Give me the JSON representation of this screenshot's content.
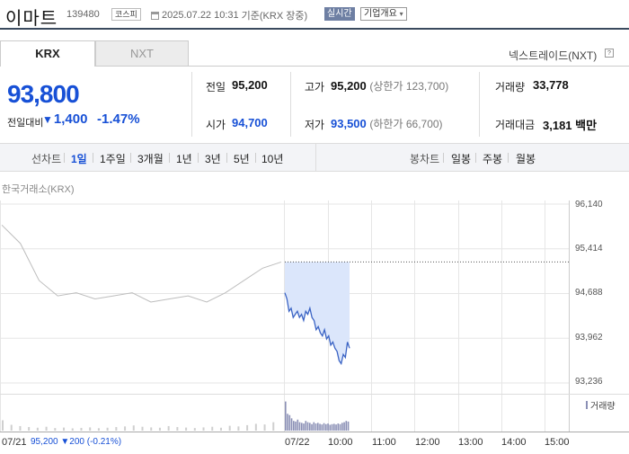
{
  "header": {
    "stock_name": "이마트",
    "stock_code": "139480",
    "market_badge": "코스피",
    "datetime": "2025.07.22 10:31",
    "basis": "기준(KRX 장중)",
    "realtime_button": "실시간",
    "company_info_button": "기업개요",
    "calendar_icon": "calendar-icon",
    "dropdown_icon": "chevron-down-icon"
  },
  "tabs": {
    "krx": "KRX",
    "nxt": "NXT",
    "nextrade_label": "넥스트레이드(NXT)",
    "help_icon": "question-icon"
  },
  "price": {
    "current": "93,800",
    "compare_label": "전일대비",
    "change": "1,400",
    "change_pct": "-1.47%",
    "direction_icon": "down-triangle-icon"
  },
  "stats": {
    "prev_label": "전일",
    "prev": "95,200",
    "open_label": "시가",
    "open": "94,700",
    "high_label": "고가",
    "high": "95,200",
    "upper_limit": "(상한가 123,700)",
    "low_label": "저가",
    "low": "93,500",
    "lower_limit": "(하한가 66,700)",
    "volume_label": "거래량",
    "volume": "33,778",
    "amount_label": "거래대금",
    "amount": "3,181",
    "amount_unit": "백만"
  },
  "period_bar": {
    "line_chart_label": "선차트",
    "line_periods": [
      "1일",
      "1주일",
      "3개월",
      "1년",
      "3년",
      "5년",
      "10년"
    ],
    "active_period": "1일",
    "candle_chart_label": "봉차트",
    "candle_periods": [
      "일봉",
      "주봉",
      "월봉"
    ]
  },
  "chart_meta": {
    "source_label": "한국거래소(KRX)",
    "volume_legend": "거래량",
    "y_ticks": [
      "96,140",
      "95,414",
      "94,688",
      "93,962",
      "93,236"
    ],
    "x_ticks": [
      "07/21",
      "07/22",
      "10:00",
      "11:00",
      "12:00",
      "13:00",
      "14:00",
      "15:00"
    ],
    "footer_date": "07/21",
    "footer_close": "95,200",
    "footer_change": "▼200",
    "footer_pct": "(-0.21%)"
  },
  "colors": {
    "price_down": "#1750d6",
    "today_line": "#3a63c4",
    "today_fill": "#dbe6fb",
    "prev_line": "#bdbdbd",
    "volume_today": "#8a8fb5",
    "volume_prev": "#cfcfcf"
  },
  "chart_data": {
    "type": "line",
    "title": "",
    "xlabel": "",
    "ylabel": "",
    "ylim": [
      93236,
      96140
    ],
    "y_ticks": [
      96140,
      95414,
      94688,
      93962,
      93236
    ],
    "grid": true,
    "series": [
      {
        "x": [
          "07/21 09:00",
          "07/21 09:20",
          "07/21 09:40",
          "07/21 10:00",
          "07/21 10:30",
          "07/21 11:00",
          "07/21 11:30",
          "07/21 12:00",
          "07/21 12:30",
          "07/21 13:00",
          "07/21 13:30",
          "07/21 14:00",
          "07/21 14:30",
          "07/21 15:00",
          "07/21 15:20",
          "07/21 15:30"
        ],
        "values": [
          95800,
          95500,
          94900,
          94650,
          94700,
          94600,
          94650,
          94700,
          94550,
          94600,
          94650,
          94550,
          94700,
          94900,
          95100,
          95200
        ]
      },
      {
        "x": [
          "09:00",
          "09:03",
          "09:06",
          "09:09",
          "09:12",
          "09:15",
          "09:18",
          "09:21",
          "09:24",
          "09:27",
          "09:30",
          "09:33",
          "09:36",
          "09:39",
          "09:42",
          "09:45",
          "09:48",
          "09:51",
          "09:54",
          "09:57",
          "10:00",
          "10:03",
          "10:06",
          "10:09",
          "10:12",
          "10:15",
          "10:18",
          "10:21",
          "10:24",
          "10:27",
          "10:30",
          "10:31"
        ],
        "values": [
          94700,
          94600,
          94400,
          94450,
          94300,
          94350,
          94400,
          94300,
          94350,
          94250,
          94400,
          94350,
          94450,
          94300,
          94250,
          94100,
          94150,
          94050,
          94000,
          94100,
          93950,
          94000,
          93850,
          93900,
          93800,
          93750,
          93600,
          93550,
          93700,
          93650,
          93900,
          93800
        ]
      }
    ],
    "reference_line": 95200,
    "volume": {
      "prev_day": [
        320,
        180,
        140,
        110,
        90,
        120,
        80,
        95,
        70,
        85,
        100,
        75,
        90,
        110,
        130,
        160,
        120,
        100,
        90,
        140,
        110,
        95,
        80,
        100,
        120,
        90,
        150,
        130,
        170,
        210,
        190,
        260
      ],
      "today": [
        900,
        520,
        480,
        380,
        300,
        280,
        340,
        260,
        240,
        220,
        300,
        260,
        240,
        200,
        260,
        220,
        240,
        210,
        190,
        230,
        200,
        220,
        180,
        200,
        210,
        190,
        220,
        200,
        240,
        260,
        300,
        280
      ]
    }
  }
}
